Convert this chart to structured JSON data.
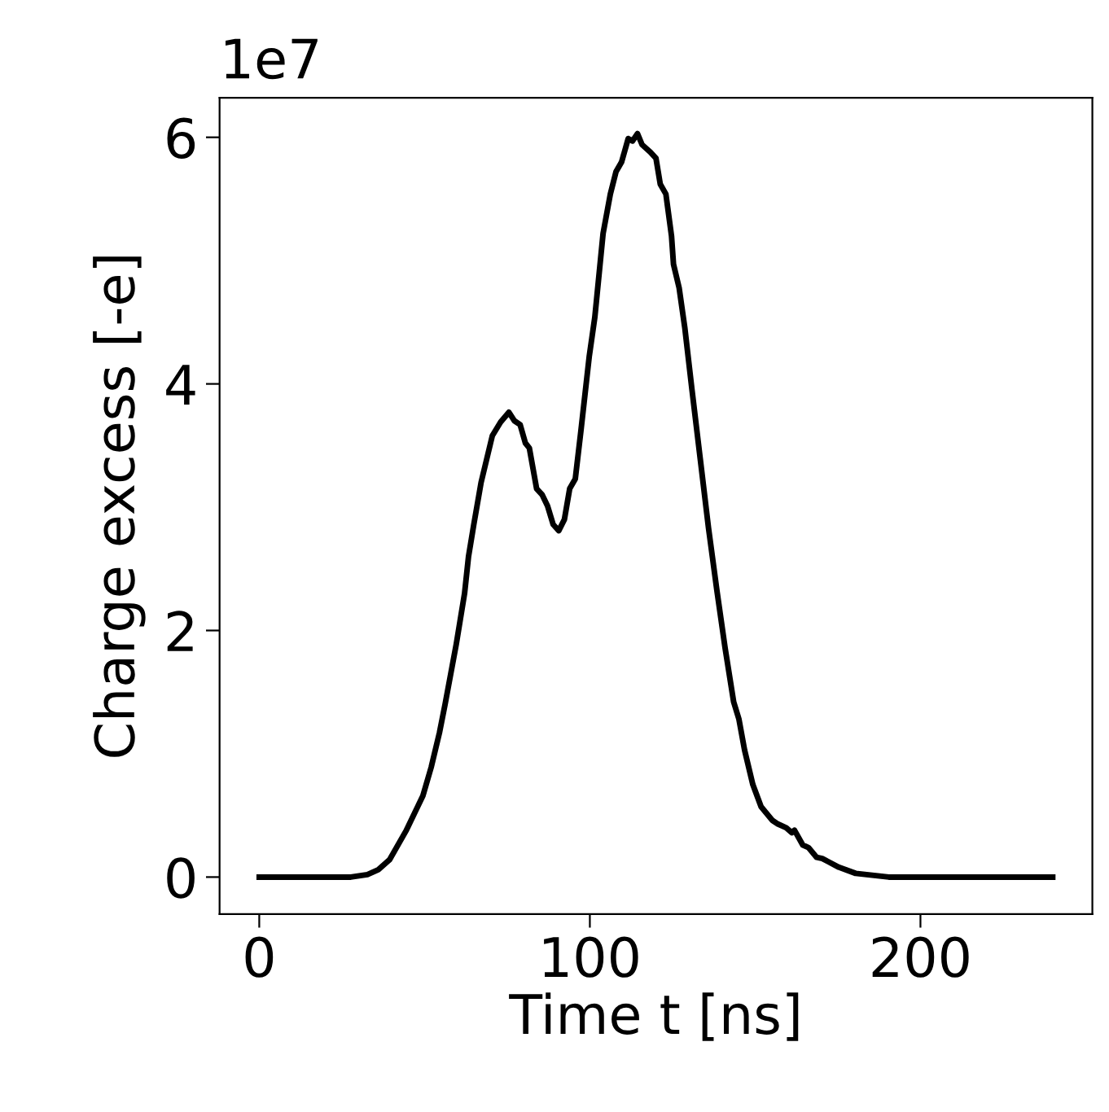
{
  "chart_data": {
    "type": "line",
    "xlabel": "Time t [ns]",
    "ylabel": "Charge excess [-e]",
    "annotations": [
      "1e7"
    ],
    "xlim": [
      -12,
      252
    ],
    "xticks": [
      0,
      100,
      200
    ],
    "ylim": [
      -0.3,
      6.32
    ],
    "yticks": [
      0,
      2,
      4,
      6
    ],
    "grid": false,
    "legend": false,
    "marker": "none",
    "line_style": "solid",
    "series": [
      {
        "color": "#000000",
        "x": [
          0,
          27.7,
          32.7,
          36,
          39.4,
          44.5,
          49.5,
          52,
          54.5,
          56.2,
          59.6,
          62.1,
          63.3,
          64.9,
          67.1,
          70.5,
          73,
          75.5,
          77.2,
          78.9,
          80.5,
          81.7,
          83.9,
          85.6,
          87.2,
          88.9,
          90.6,
          92.3,
          93.9,
          95.6,
          97.3,
          99.8,
          101.5,
          104,
          106.2,
          107.9,
          109.6,
          111.6,
          112.9,
          114.4,
          115.8,
          118.3,
          120,
          121.3,
          123,
          124.7,
          125.3,
          127,
          128.7,
          130.9,
          133.4,
          135.9,
          138.4,
          140.9,
          143.5,
          145.1,
          146.8,
          149.3,
          151.8,
          155.2,
          156.9,
          159.4,
          161.1,
          161.9,
          164.4,
          166.1,
          168.6,
          170.3,
          175.3,
          180.4,
          190.4,
          240
        ],
        "values": [
          0,
          0,
          0.02,
          0.06,
          0.14,
          0.38,
          0.66,
          0.89,
          1.17,
          1.4,
          1.89,
          2.3,
          2.6,
          2.86,
          3.2,
          3.58,
          3.69,
          3.77,
          3.7,
          3.67,
          3.52,
          3.48,
          3.15,
          3.1,
          3.01,
          2.86,
          2.81,
          2.9,
          3.15,
          3.23,
          3.62,
          4.22,
          4.54,
          5.22,
          5.54,
          5.72,
          5.8,
          5.99,
          5.97,
          6.03,
          5.94,
          5.88,
          5.83,
          5.62,
          5.54,
          5.2,
          4.97,
          4.78,
          4.46,
          3.95,
          3.39,
          2.83,
          2.33,
          1.86,
          1.42,
          1.28,
          1.03,
          0.75,
          0.57,
          0.46,
          0.43,
          0.4,
          0.36,
          0.38,
          0.26,
          0.24,
          0.16,
          0.15,
          0.08,
          0.03,
          0,
          0
        ]
      }
    ]
  }
}
